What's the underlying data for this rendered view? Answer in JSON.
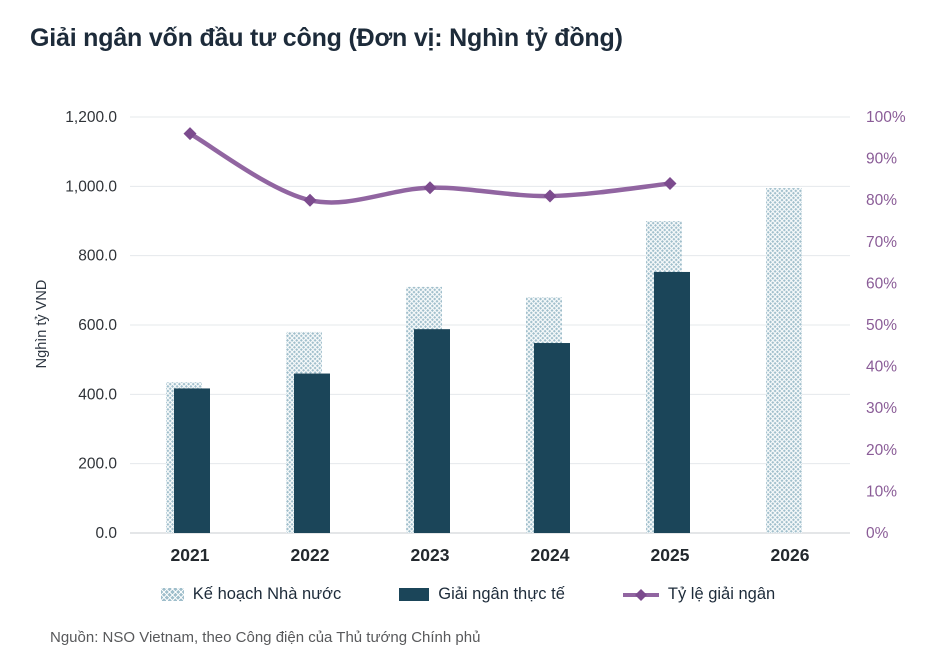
{
  "title": "Giải ngân vốn đầu tư công (Đơn vị: Nghìn tỷ đồng)",
  "source": "Nguồn: NSO Vietnam, theo Công điện của Thủ tướng Chính phủ",
  "legend": {
    "plan": "Kế hoạch Nhà nước",
    "actual": "Giải ngân thực tế",
    "rate": "Tỷ lệ giải ngân"
  },
  "colors": {
    "plan_fill": "#9fbecb",
    "plan_hatch": "#ffffff",
    "actual_fill": "#1b4559",
    "rate_line": "#9165a1",
    "rate_marker": "#7c4b8e",
    "right_axis_text": "#8a5c97",
    "left_axis_text": "#2f3338",
    "x_axis_text": "#23292e",
    "grid": "#e5e8eb",
    "baseline": "#c8cdd2",
    "title_text": "#1d2b3a"
  },
  "chart_data": {
    "type": "bar",
    "subtype": "bar+line-combo",
    "title": "Giải ngân vốn đầu tư công (Đơn vị: Nghìn tỷ đồng)",
    "xlabel": "",
    "ylabel": "Nghìn tỷ VND",
    "categories": [
      "2021",
      "2022",
      "2023",
      "2024",
      "2025",
      "2026"
    ],
    "series": [
      {
        "name": "Kế hoạch Nhà nước",
        "type": "bar",
        "style": "hatched",
        "axis": "left",
        "values": [
          435,
          580,
          710,
          680,
          900,
          995
        ]
      },
      {
        "name": "Giải ngân thực tế",
        "type": "bar",
        "style": "solid",
        "axis": "left",
        "values": [
          417,
          460,
          588,
          548,
          753,
          null
        ]
      },
      {
        "name": "Tỷ lệ giải ngân",
        "type": "line",
        "marker": "diamond",
        "axis": "right",
        "unit": "%",
        "values": [
          96,
          80,
          83,
          81,
          84,
          null
        ]
      }
    ],
    "left_axis": {
      "min": 0,
      "max": 1200,
      "step": 200,
      "tick_labels": [
        "0.0",
        "200.0",
        "400.0",
        "600.0",
        "800.0",
        "1,000.0",
        "1,200.0"
      ]
    },
    "right_axis": {
      "min": 0,
      "max": 100,
      "step": 10,
      "tick_labels": [
        "0%",
        "10%",
        "20%",
        "30%",
        "40%",
        "50%",
        "60%",
        "70%",
        "80%",
        "90%",
        "100%"
      ]
    },
    "grid": true,
    "legend_position": "bottom"
  }
}
